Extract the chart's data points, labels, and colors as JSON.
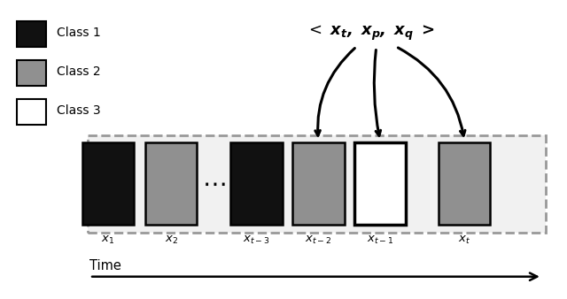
{
  "bg_color": "#f0f0f0",
  "white": "#ffffff",
  "black": "#000000",
  "dark_gray": "#1a1a1a",
  "gray": "#909090",
  "light_gray": "#b0b0b0",
  "box_colors": [
    "#111111",
    "#909090",
    "#111111",
    "#909090",
    "#ffffff",
    "#909090"
  ],
  "box_labels": [
    "$x_1$",
    "$x_2$",
    "$x_{t-3}$",
    "$x_{t-2}$",
    "$x_{t-1}$",
    "$x_t$"
  ],
  "legend_colors": [
    "#111111",
    "#909090",
    "#ffffff"
  ],
  "legend_labels": [
    "Class 1",
    "Class 2",
    "Class 3"
  ],
  "triplet_label": "$< x_t, x_p, x_q >$",
  "time_label": "Time",
  "figure_bg": "#ffffff",
  "dashed_border": "#999999"
}
